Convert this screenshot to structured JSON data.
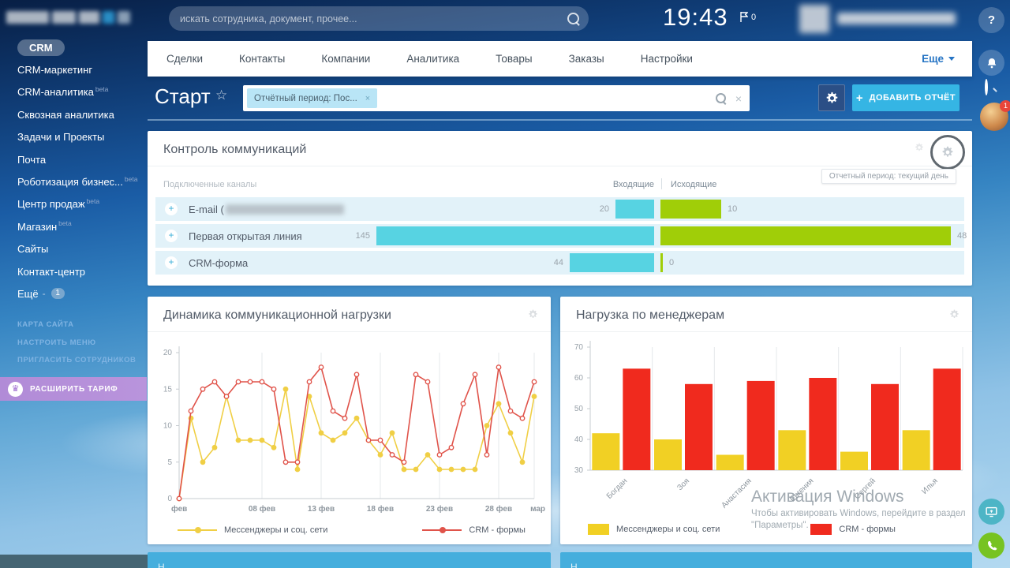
{
  "topbar": {
    "search_placeholder": "искать сотрудника, документ, прочее...",
    "clock": "19:43",
    "flag_count": "0"
  },
  "rail": {
    "notification_count": "1"
  },
  "sidebar": {
    "items": [
      {
        "label": "CRM",
        "pill": true
      },
      {
        "label": "CRM-маркетинг"
      },
      {
        "label": "CRM-аналитика",
        "beta": "beta"
      },
      {
        "label": "Сквозная аналитика"
      },
      {
        "label": "Задачи и Проекты"
      },
      {
        "label": "Почта"
      },
      {
        "label": "Роботизация бизнес...",
        "beta": "beta"
      },
      {
        "label": "Центр продаж",
        "beta": "beta"
      },
      {
        "label": "Магазин",
        "beta": "beta"
      },
      {
        "label": "Сайты"
      },
      {
        "label": "Контакт-центр"
      },
      {
        "label": "Ещё",
        "count": "1"
      }
    ],
    "footer_links": [
      "КАРТА САЙТА",
      "НАСТРОИТЬ МЕНЮ",
      "ПРИГЛАСИТЬ СОТРУДНИКОВ"
    ],
    "upgrade_label": "РАСШИРИТЬ ТАРИФ"
  },
  "nav": {
    "tabs": [
      "Сделки",
      "Контакты",
      "Компании",
      "Аналитика",
      "Товары",
      "Заказы",
      "Настройки"
    ],
    "more": "Еще"
  },
  "page": {
    "title": "Старт",
    "filter_chip": "Отчётный период: Пос...",
    "add_report": "ДОБАВИТЬ ОТЧЁТ"
  },
  "comm_widget": {
    "title": "Контроль коммуникаций",
    "tooltip": "Отчетный период: текущий день",
    "channels_header": "Подключенные каналы",
    "incoming_header": "Входящие",
    "outgoing_header": "Исходящие",
    "incoming_color": "#57d3e2",
    "outgoing_color": "#a0ce08",
    "rows": [
      {
        "label": "E-mail (",
        "blurred": true,
        "incoming": 20,
        "outgoing": 10
      },
      {
        "label": "Первая открытая линия",
        "incoming": 145,
        "outgoing": 48
      },
      {
        "label": "CRM-форма",
        "incoming": 44,
        "outgoing": 0
      }
    ]
  },
  "chart_data": [
    {
      "type": "line",
      "title": "Динамика коммуникационной нагрузки",
      "ylim": [
        0,
        20
      ],
      "yticks": [
        0,
        5,
        10,
        15,
        20
      ],
      "x_tick_labels": [
        "фев",
        "08 фев",
        "13 фев",
        "18 фев",
        "23 фев",
        "28 фев",
        "мар"
      ],
      "x_tick_indices": [
        0,
        7,
        12,
        17,
        22,
        27,
        30
      ],
      "grid": "vertical",
      "legend_position": "bottom",
      "series": [
        {
          "name": "Мессенджеры и соц. сети",
          "color": "#f0cf45",
          "values": [
            0,
            11,
            5,
            7,
            14,
            8,
            8,
            8,
            7,
            15,
            4,
            14,
            9,
            8,
            9,
            11,
            8,
            6,
            9,
            4,
            4,
            6,
            4,
            4,
            4,
            4,
            10,
            13,
            9,
            5,
            14
          ]
        },
        {
          "name": "CRM - формы",
          "color": "#e0534a",
          "values": [
            0,
            12,
            15,
            16,
            14,
            16,
            16,
            16,
            15,
            5,
            5,
            16,
            18,
            12,
            11,
            17,
            8,
            8,
            6,
            5,
            17,
            16,
            6,
            7,
            13,
            17,
            6,
            18,
            12,
            11,
            16
          ]
        }
      ]
    },
    {
      "type": "bar",
      "title": "Нагрузка по менеджерам",
      "ylim": [
        30,
        70
      ],
      "yticks": [
        30,
        40,
        50,
        60,
        70
      ],
      "categories": [
        "Богдан",
        "Зоя",
        "Анастасия",
        "Евгения",
        "Сергей",
        "Илья"
      ],
      "grid": "vertical",
      "legend_position": "bottom",
      "series": [
        {
          "name": "Мессенджеры и соц. сети",
          "color": "#f1d024",
          "values": [
            42,
            40,
            35,
            43,
            36,
            43
          ]
        },
        {
          "name": "CRM - формы",
          "color": "#f02a1e",
          "values": [
            63,
            58,
            59,
            60,
            58,
            63
          ]
        }
      ]
    }
  ],
  "watermark": {
    "line1": "Активация Windows",
    "line2": "Чтобы активировать Windows, перейдите в раздел",
    "line3": "\"Параметры\"."
  },
  "partial_widgets": {
    "left": "Н...",
    "right": "Н..."
  }
}
